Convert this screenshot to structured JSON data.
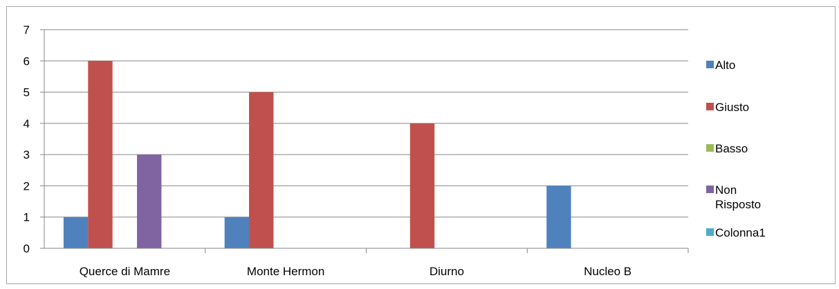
{
  "chart_data": {
    "type": "bar",
    "categories": [
      "Querce di Mamre",
      "Monte Hermon",
      "Diurno",
      "Nucleo B"
    ],
    "series": [
      {
        "name": "Alto",
        "color": "#4f81bd",
        "values": [
          1,
          1,
          0,
          2
        ]
      },
      {
        "name": "Giusto",
        "color": "#c0504d",
        "values": [
          6,
          5,
          4,
          0
        ]
      },
      {
        "name": "Basso",
        "color": "#9bbb59",
        "values": [
          0,
          0,
          0,
          0
        ]
      },
      {
        "name": "Non Risposto",
        "color": "#8064a2",
        "values": [
          3,
          0,
          0,
          0
        ]
      },
      {
        "name": "Colonna1",
        "color": "#4bacc6",
        "values": [
          0,
          0,
          0,
          0
        ]
      }
    ],
    "ylim": [
      0,
      7
    ],
    "yticks": [
      "0",
      "1",
      "2",
      "3",
      "4",
      "5",
      "6",
      "7"
    ],
    "grid": true,
    "legend_position": "right"
  }
}
